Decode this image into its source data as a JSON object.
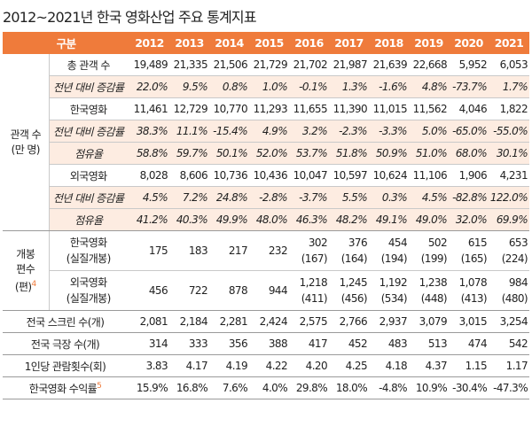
{
  "title": "2012~2021년 한국 영화산업 주요 통계지표",
  "header": {
    "gubun": "구분",
    "years": [
      "2012",
      "2013",
      "2014",
      "2015",
      "2016",
      "2017",
      "2018",
      "2019",
      "2020",
      "2021"
    ]
  },
  "group_attendance": {
    "label_line1": "관객 수",
    "label_line2": "(만 명)",
    "rows": [
      {
        "label": "총 관객 수",
        "values": [
          "19,489",
          "21,335",
          "21,506",
          "21,729",
          "21,702",
          "21,987",
          "21,639",
          "22,668",
          "5,952",
          "6,053"
        ]
      },
      {
        "label": "전년 대비 증감률",
        "values": [
          "22.0%",
          "9.5%",
          "0.8%",
          "1.0%",
          "-0.1%",
          "1.3%",
          "-1.6%",
          "4.8%",
          "-73.7%",
          "1.7%"
        ]
      },
      {
        "label": "한국영화",
        "values": [
          "11,461",
          "12,729",
          "10,770",
          "11,293",
          "11,655",
          "11,390",
          "11,015",
          "11,562",
          "4,046",
          "1,822"
        ]
      },
      {
        "label": "전년 대비 증감률",
        "values": [
          "38.3%",
          "11.1%",
          "-15.4%",
          "4.9%",
          "3.2%",
          "-2.3%",
          "-3.3%",
          "5.0%",
          "-65.0%",
          "-55.0%"
        ]
      },
      {
        "label": "점유율",
        "values": [
          "58.8%",
          "59.7%",
          "50.1%",
          "52.0%",
          "53.7%",
          "51.8%",
          "50.9%",
          "51.0%",
          "68.0%",
          "30.1%"
        ]
      },
      {
        "label": "외국영화",
        "values": [
          "8,028",
          "8,606",
          "10,736",
          "10,436",
          "10,047",
          "10,597",
          "10,624",
          "11,106",
          "1,906",
          "4,231"
        ]
      },
      {
        "label": "전년 대비 증감률",
        "values": [
          "4.5%",
          "7.2%",
          "24.8%",
          "-2.8%",
          "-3.7%",
          "5.5%",
          "0.3%",
          "4.5%",
          "-82.8%",
          "122.0%"
        ]
      },
      {
        "label": "점유율",
        "values": [
          "41.2%",
          "40.3%",
          "49.9%",
          "48.0%",
          "46.3%",
          "48.2%",
          "49.1%",
          "49.0%",
          "32.0%",
          "69.9%"
        ]
      }
    ]
  },
  "group_release": {
    "label_line1": "개봉",
    "label_line2": "편수",
    "label_line3": "(편)",
    "footnote_mark": "4",
    "rows": [
      {
        "label_line1": "한국영화",
        "label_line2": "(실질개봉)",
        "values": [
          "175",
          "183",
          "217",
          "232",
          "302",
          "376",
          "454",
          "502",
          "615",
          "653"
        ],
        "subvalues": [
          "",
          "",
          "",
          "",
          "(167)",
          "(164)",
          "(194)",
          "(199)",
          "(165)",
          "(224)"
        ]
      },
      {
        "label_line1": "외국영화",
        "label_line2": "(실질개봉)",
        "values": [
          "456",
          "722",
          "878",
          "944",
          "1,218",
          "1,245",
          "1,192",
          "1,238",
          "1,078",
          "984"
        ],
        "subvalues": [
          "",
          "",
          "",
          "",
          "(411)",
          "(456)",
          "(534)",
          "(448)",
          "(413)",
          "(480)"
        ]
      }
    ]
  },
  "other_rows": [
    {
      "label": "전국 스크린 수(개)",
      "values": [
        "2,081",
        "2,184",
        "2,281",
        "2,424",
        "2,575",
        "2,766",
        "2,937",
        "3,079",
        "3,015",
        "3,254"
      ]
    },
    {
      "label": "전국 극장 수(개)",
      "values": [
        "314",
        "333",
        "356",
        "388",
        "417",
        "452",
        "483",
        "513",
        "474",
        "542"
      ]
    },
    {
      "label": "1인당 관람횟수(회)",
      "values": [
        "3.83",
        "4.17",
        "4.19",
        "4.22",
        "4.20",
        "4.25",
        "4.18",
        "4.37",
        "1.15",
        "1.17"
      ]
    },
    {
      "label": "한국영화 수익률",
      "footnote_mark": "5",
      "values": [
        "15.9%",
        "16.8%",
        "7.6%",
        "4.0%",
        "29.8%",
        "18.0%",
        "-4.8%",
        "10.9%",
        "-30.4%",
        "-47.3%"
      ]
    }
  ],
  "colors": {
    "header_bg": "#ef7b3b",
    "shade_bg": "#fdece1",
    "footnote": "#ef7b3b"
  }
}
